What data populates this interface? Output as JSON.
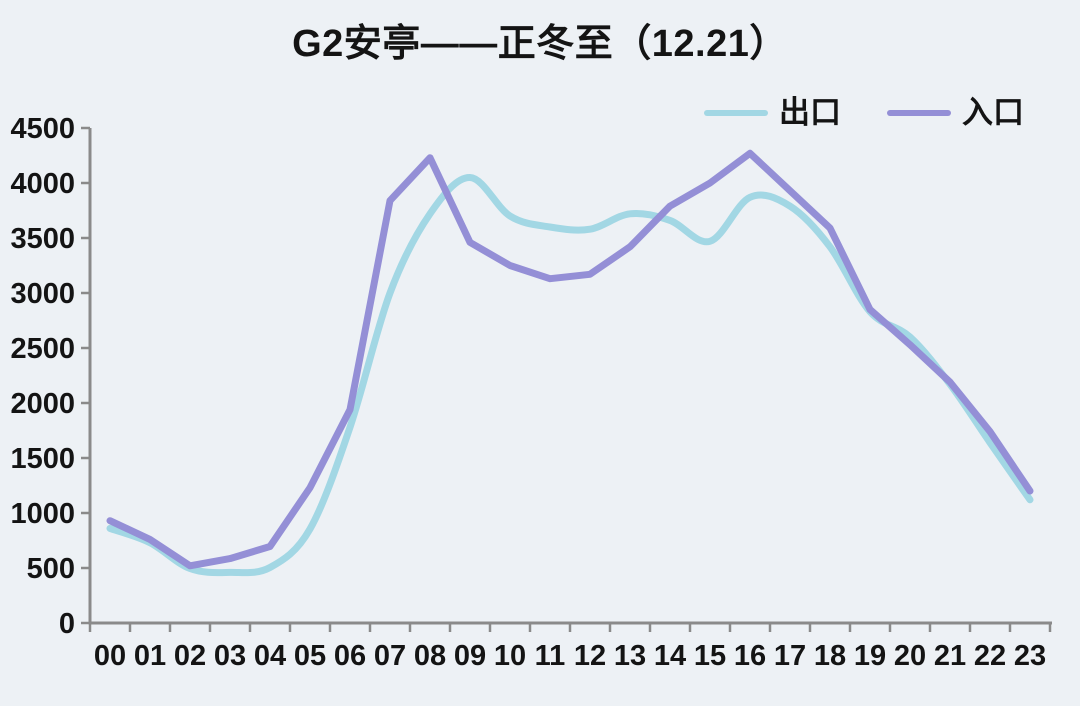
{
  "page": {
    "background": "#edf1f5"
  },
  "chart_data": {
    "type": "line",
    "title": "G2安亭——正冬至（12.21）",
    "xlabel": "",
    "ylabel": "",
    "x_categories": [
      "00",
      "01",
      "02",
      "03",
      "04",
      "05",
      "06",
      "07",
      "08",
      "09",
      "10",
      "11",
      "12",
      "13",
      "14",
      "15",
      "16",
      "17",
      "18",
      "19",
      "20",
      "21",
      "22",
      "23"
    ],
    "ylim": [
      0,
      4500
    ],
    "y_ticks": [
      0,
      500,
      1000,
      1500,
      2000,
      2500,
      3000,
      3500,
      4000,
      4500
    ],
    "grid": false,
    "legend_position": "top-right",
    "series": [
      {
        "name": "出口",
        "color": "#a2d7e4",
        "smooth": true,
        "values": [
          860,
          730,
          495,
          460,
          505,
          855,
          1780,
          3000,
          3720,
          4050,
          3700,
          3600,
          3580,
          3720,
          3660,
          3470,
          3870,
          3790,
          3420,
          2830,
          2600,
          2170,
          1640,
          1120
        ]
      },
      {
        "name": "入口",
        "color": "#948fd6",
        "smooth": false,
        "values": [
          930,
          760,
          520,
          585,
          695,
          1230,
          1940,
          3840,
          4230,
          3460,
          3250,
          3130,
          3170,
          3420,
          3790,
          4000,
          4270,
          3930,
          3590,
          2850,
          2530,
          2190,
          1740,
          1200
        ]
      }
    ],
    "axis_color": "#8a8a8a",
    "text_color": "#141414"
  }
}
